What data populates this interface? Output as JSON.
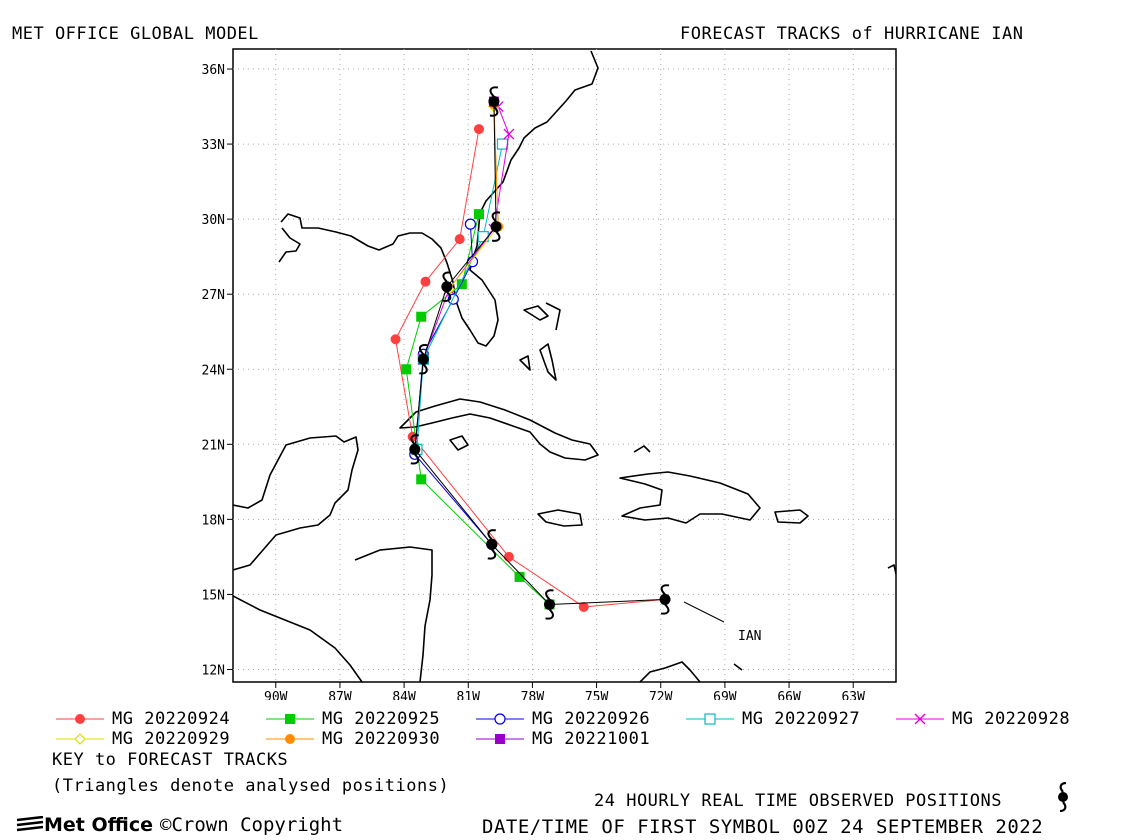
{
  "header": {
    "left": "MET OFFICE GLOBAL MODEL",
    "right": "FORECAST TRACKS of HURRICANE IAN"
  },
  "colors": {
    "land": "#000000",
    "frame": "#000000",
    "grid": "#aaaaaa",
    "observed": "#000000"
  },
  "map": {
    "lon_range": [
      -92,
      -61
    ],
    "lat_range": [
      11.5,
      36.8
    ],
    "lat_ticks": [
      {
        "value": 12,
        "label": "12N"
      },
      {
        "value": 15,
        "label": "15N"
      },
      {
        "value": 18,
        "label": "18N"
      },
      {
        "value": 21,
        "label": "21N"
      },
      {
        "value": 24,
        "label": "24N"
      },
      {
        "value": 27,
        "label": "27N"
      },
      {
        "value": 30,
        "label": "30N"
      },
      {
        "value": 33,
        "label": "33N"
      },
      {
        "value": 36,
        "label": "36N"
      }
    ],
    "lon_ticks": [
      {
        "value": -90,
        "label": "90W"
      },
      {
        "value": -87,
        "label": "87W"
      },
      {
        "value": -84,
        "label": "84W"
      },
      {
        "value": -81,
        "label": "81W"
      },
      {
        "value": -78,
        "label": "78W"
      },
      {
        "value": -75,
        "label": "75W"
      },
      {
        "value": -72,
        "label": "72W"
      },
      {
        "value": -69,
        "label": "69W"
      },
      {
        "value": -66,
        "label": "66W"
      },
      {
        "value": -63,
        "label": "63W"
      }
    ],
    "storm_label": "IAN"
  },
  "chart_data": {
    "type": "scatter",
    "observed_track": [
      [
        -71.8,
        14.8
      ],
      [
        -77.2,
        14.6
      ],
      [
        -79.9,
        17.0
      ],
      [
        -83.5,
        20.8
      ],
      [
        -83.1,
        24.4
      ],
      [
        -82.0,
        27.3
      ],
      [
        -79.7,
        29.7
      ],
      [
        -79.8,
        34.7
      ]
    ],
    "series": [
      {
        "name": "MG 20220924",
        "color": "#ff4040",
        "marker": "filled-circle",
        "points": [
          [
            -71.8,
            14.8
          ],
          [
            -75.6,
            14.5
          ],
          [
            -79.1,
            16.5
          ],
          [
            -83.6,
            21.3
          ],
          [
            -84.4,
            25.2
          ],
          [
            -83.0,
            27.5
          ],
          [
            -81.4,
            29.2
          ],
          [
            -80.5,
            33.6
          ]
        ]
      },
      {
        "name": "MG 20220925",
        "color": "#00cc00",
        "marker": "filled-square",
        "points": [
          [
            -77.2,
            14.6
          ],
          [
            -78.6,
            15.7
          ],
          [
            -83.2,
            19.6
          ],
          [
            -83.9,
            24.0
          ],
          [
            -83.2,
            26.1
          ],
          [
            -81.3,
            27.4
          ],
          [
            -80.5,
            30.2
          ]
        ]
      },
      {
        "name": "MG 20220926",
        "color": "#0000dd",
        "marker": "open-circle",
        "points": [
          [
            -79.9,
            17.0
          ],
          [
            -83.5,
            20.6
          ],
          [
            -83.1,
            24.6
          ],
          [
            -81.7,
            26.8
          ],
          [
            -80.8,
            28.3
          ],
          [
            -80.9,
            29.8
          ]
        ]
      },
      {
        "name": "MG 20220927",
        "color": "#00bbbb",
        "marker": "open-square",
        "points": [
          [
            -83.4,
            20.8
          ],
          [
            -83.1,
            24.4
          ],
          [
            -80.3,
            29.3
          ],
          [
            -79.4,
            33.0
          ]
        ]
      },
      {
        "name": "MG 20220928",
        "color": "#dd00dd",
        "marker": "cross",
        "points": [
          [
            -83.1,
            24.4
          ],
          [
            -81.9,
            27.2
          ],
          [
            -79.8,
            29.6
          ],
          [
            -79.1,
            33.4
          ],
          [
            -79.6,
            34.5
          ]
        ]
      },
      {
        "name": "MG 20220929",
        "color": "#dddd00",
        "marker": "open-diamond",
        "points": [
          [
            -81.9,
            27.2
          ],
          [
            -79.6,
            29.7
          ],
          [
            -79.8,
            34.5
          ]
        ]
      },
      {
        "name": "MG 20220930",
        "color": "#ff8c00",
        "marker": "filled-circle",
        "points": [
          [
            -79.6,
            29.7
          ],
          [
            -79.8,
            34.6
          ]
        ]
      },
      {
        "name": "MG 20221001",
        "color": "#9900cc",
        "marker": "filled-square",
        "points": [
          [
            -79.8,
            34.7
          ]
        ]
      }
    ]
  },
  "legend": {
    "key_title": "KEY to FORECAST TRACKS",
    "note": "(Triangles denote analysed positions)"
  },
  "footer": {
    "observed_label": "24 HOURLY REAL TIME OBSERVED POSITIONS",
    "datetime": "DATE/TIME OF FIRST SYMBOL 00Z 24 SEPTEMBER 2022",
    "logo_text": "Met Office",
    "copyright": "Crown Copyright"
  }
}
